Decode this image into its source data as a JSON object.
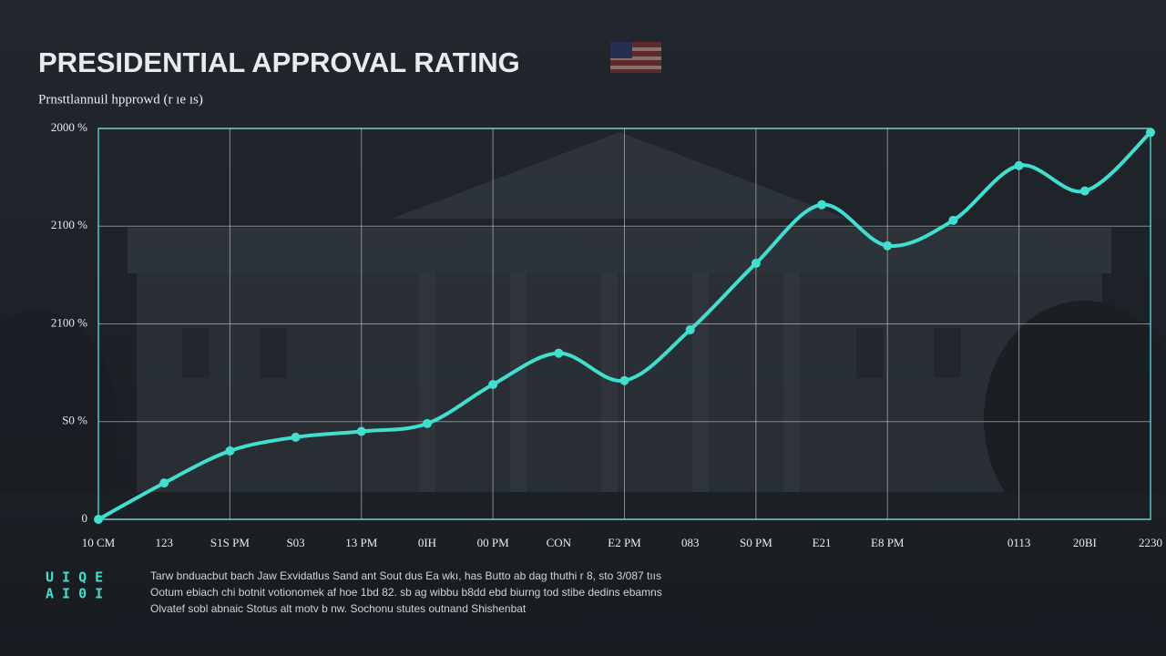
{
  "chart_data": {
    "type": "line",
    "title": "PRESIDENTIAL APPROVAL RATING",
    "subtitle": "Prnsttlannuil hpprowd (r ıe ıs)",
    "categories": [
      "10 CM",
      "123",
      "S1S PM",
      "S03",
      "13 PM",
      "0IH",
      "00 PM",
      "CON",
      "E2 PM",
      "083",
      "S0 PM",
      "E21",
      "E8 PM",
      null,
      "0113",
      "20BI",
      "2230"
    ],
    "series": [
      {
        "name": "Approval",
        "color": "#3fe0cf",
        "values": [
          0,
          18.6,
          35,
          42,
          45,
          49,
          69,
          85,
          71,
          97,
          131,
          161,
          140,
          153,
          181,
          168,
          198
        ]
      }
    ],
    "ylim": [
      0,
      200
    ],
    "yticks": [
      0,
      {
        "value": 50,
        "label": "S0 %"
      },
      {
        "value": 100,
        "label": "2100 %"
      },
      {
        "value": 150,
        "label": "2100 %"
      },
      {
        "value": 200,
        "label": "2000 %"
      }
    ],
    "grid": true,
    "logo": [
      "U I Q E",
      "A I 0 I"
    ],
    "notes": [
      "Tarw bnduacbut bach Jaw Exvidatlus Sand ant Sout dus Ea wkı, has Butto ab dag thuthi r 8, sto 3/087 tııs",
      "Ootum ebiach chi botnit votionomek af hoe 1bd 82. sb ag wibbu b8dd ebd biurng tod stibe dedins ebamns",
      "Olvatef sobl abnaic Stotus alt motv b nw. Sochonu stutes outnand Shishenbat"
    ]
  }
}
